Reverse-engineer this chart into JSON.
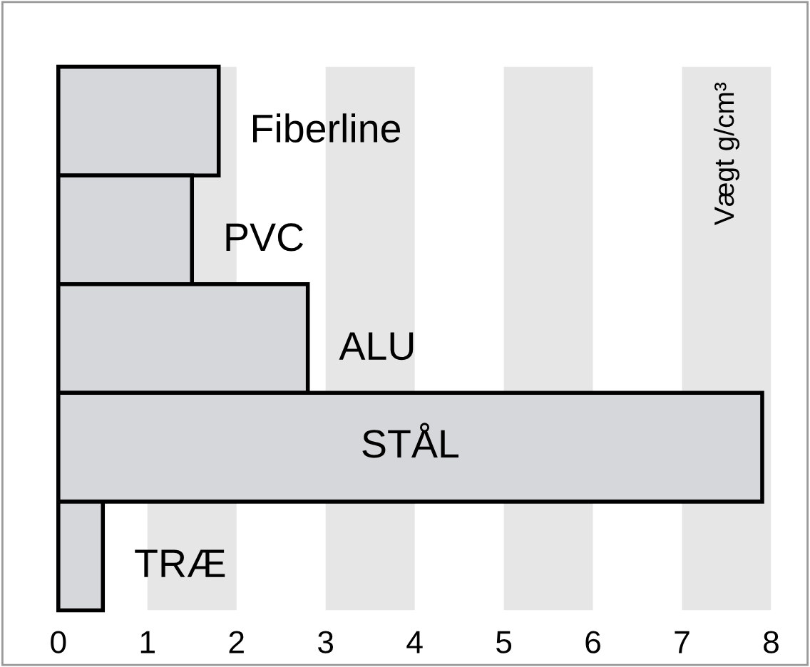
{
  "chart_data": {
    "type": "bar",
    "orientation": "horizontal",
    "annotations": [
      "Vægt g/cm³"
    ],
    "categories": [
      "Fiberline",
      "PVC",
      "ALU",
      "STÅL",
      "TRÆ"
    ],
    "values": [
      1.8,
      1.5,
      2.8,
      7.9,
      0.5
    ],
    "color": "#d6d7da",
    "xlim": [
      0,
      8
    ],
    "xticks": [
      0,
      1,
      2,
      3,
      4,
      5,
      6,
      7,
      8
    ],
    "tick_labels": "x",
    "grid": false,
    "legend": false
  }
}
